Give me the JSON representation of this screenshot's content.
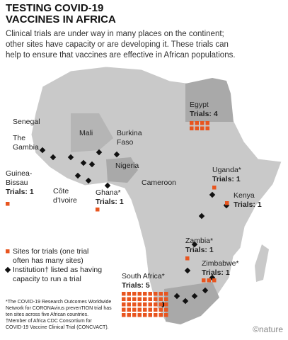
{
  "header": {
    "title": [
      "TESTING COVID-19",
      "VACCINES IN AFRICA"
    ],
    "subtitle": [
      "Clinical trials are under way in many places on the continent;",
      "other sites have capacity or are developing it. These trials can",
      "help to ensure that vaccines are effective in African populations."
    ]
  },
  "countries": [
    {
      "label": [
        "Egypt"
      ],
      "trials": "Trials: 4",
      "sites": 8
    },
    {
      "label": [
        "Guinea-",
        "Bissau"
      ],
      "trials": "Trials: 1",
      "sites": 1
    },
    {
      "label": [
        "Ghana*"
      ],
      "trials": "Trials: 1",
      "sites": 1
    },
    {
      "label": [
        "Uganda*"
      ],
      "trials": "Trials: 1",
      "sites": 1
    },
    {
      "label": [
        "Kenya"
      ],
      "trials": "Trials: 1",
      "sites": 1
    },
    {
      "label": [
        "Zambia*"
      ],
      "trials": "Trials: 1",
      "sites": 1
    },
    {
      "label": [
        "Zimbabwe*"
      ],
      "trials": "Trials: 1",
      "sites": 3
    },
    {
      "label": [
        "South Africa*"
      ],
      "trials": "Trials: 5",
      "sites": 45
    }
  ],
  "labels": [
    [
      "Senegal"
    ],
    [
      "The",
      "Gambia"
    ],
    [
      "Mali"
    ],
    [
      "Burkina",
      "Faso"
    ],
    [
      "Nigeria"
    ],
    [
      "Côte",
      "d’Ivoire"
    ],
    [
      "Cameroon"
    ]
  ],
  "legend": {
    "sites": [
      "Sites for trials (one trial",
      "often has many sites)"
    ],
    "institution": [
      "Institution† listed as having",
      "capacity to run a trial"
    ]
  },
  "footnotes": [
    "*The COVID-19 Research Outcomes Worldwide",
    "Network for CORONAvirus prevenTION trial has",
    "ten sites across five African countries.",
    "†Member of Africa CDC Consortium for",
    "COVID-19 Vaccine Clinical Trial (CONCVACT)."
  ],
  "credit": "©nature"
}
